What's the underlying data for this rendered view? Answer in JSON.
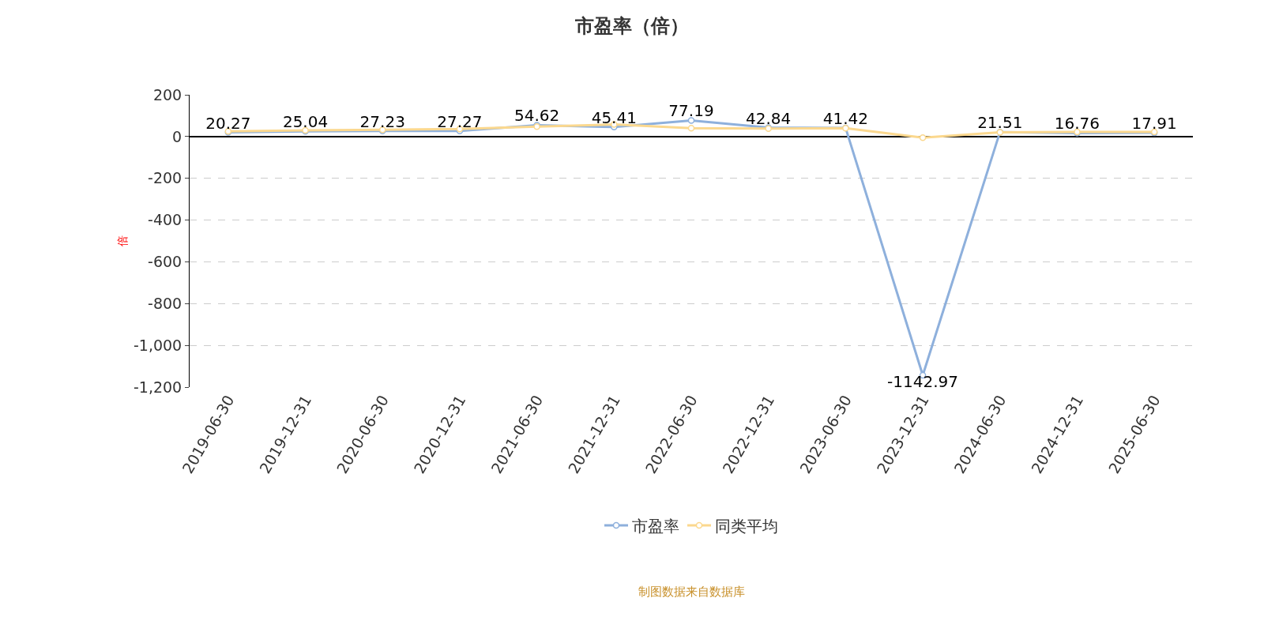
{
  "chart_data": {
    "type": "line",
    "title": "市盈率（倍）",
    "ylabel": "倍",
    "categories": [
      "2019-06-30",
      "2019-12-31",
      "2020-06-30",
      "2020-12-31",
      "2021-06-30",
      "2021-12-31",
      "2022-06-30",
      "2022-12-31",
      "2023-06-30",
      "2023-12-31",
      "2024-06-30",
      "2024-12-31",
      "2025-06-30"
    ],
    "series": [
      {
        "name": "市盈率",
        "color": "#8eb0dc",
        "values": [
          20.27,
          25.04,
          27.23,
          27.27,
          54.62,
          45.41,
          77.19,
          42.84,
          41.42,
          -1142.97,
          21.51,
          16.76,
          17.91
        ],
        "value_labels": [
          "20.27",
          "25.04",
          "27.23",
          "27.27",
          "54.62",
          "45.41",
          "77.19",
          "42.84",
          "41.42",
          "-1142.97",
          "21.51",
          "16.76",
          "17.91"
        ]
      },
      {
        "name": "同类平均",
        "color": "#fbd88e",
        "values": [
          25,
          30,
          33,
          36,
          48,
          58,
          40,
          38,
          40,
          -5,
          20,
          22,
          22
        ]
      }
    ],
    "ylim": [
      -1200,
      200
    ],
    "yticks": [
      {
        "value": -1200,
        "label": "-1,200"
      },
      {
        "value": -1000,
        "label": "-1,000"
      },
      -800,
      -600,
      -400,
      -200,
      0,
      200
    ],
    "grid": "y",
    "legend": "bottom",
    "marker": "circle",
    "line_style": "solid",
    "annotations": [
      "制图数据来自数据库"
    ]
  }
}
